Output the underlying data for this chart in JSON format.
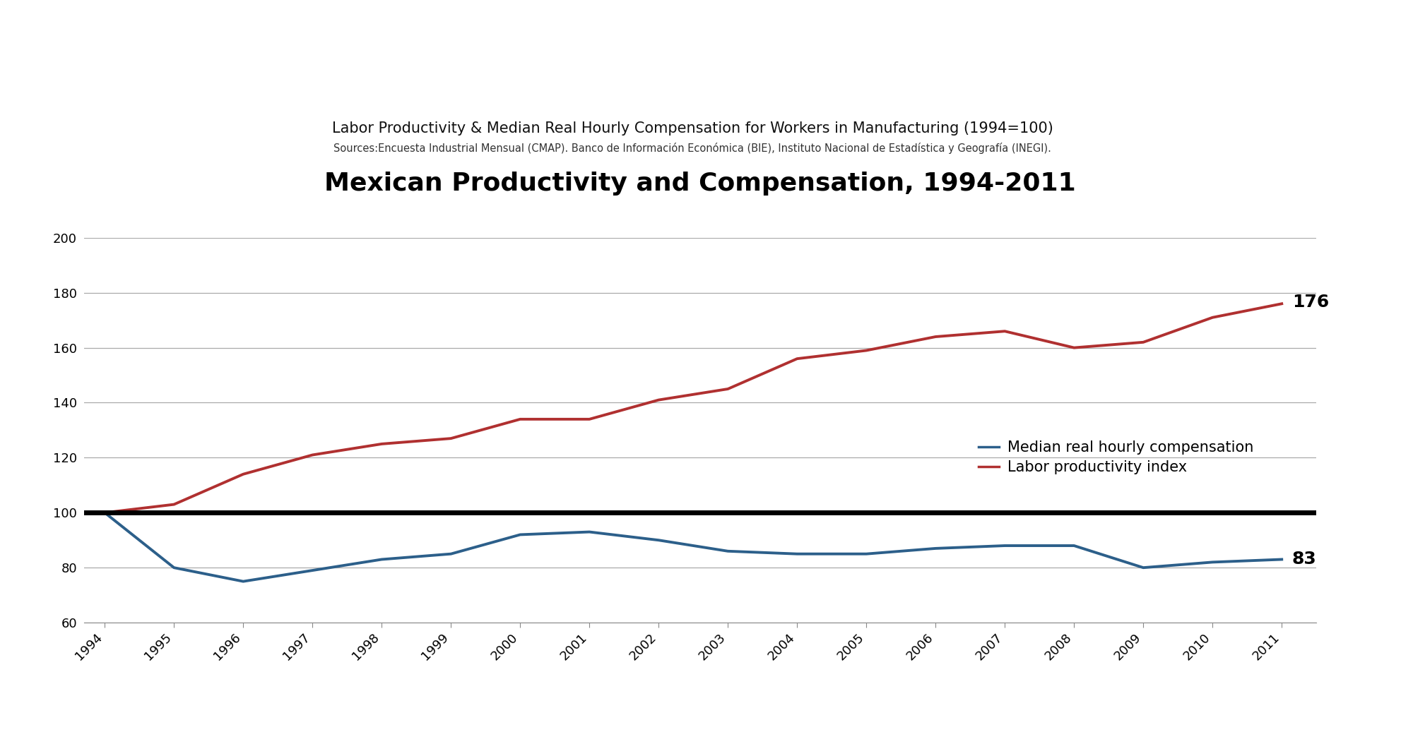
{
  "title": "Mexican Productivity and Compensation, 1994-2011",
  "subtitle": "Labor Productivity & Median Real Hourly Compensation for Workers in Manufacturing (1994=100)",
  "sources": "Sources:Encuesta Industrial Mensual (CMAP). Banco de Información Económica (BIE), Instituto Nacional de Estadística y Geografía (INEGI).",
  "years": [
    1994,
    1995,
    1996,
    1997,
    1998,
    1999,
    2000,
    2001,
    2002,
    2003,
    2004,
    2005,
    2006,
    2007,
    2008,
    2009,
    2010,
    2011
  ],
  "labor_productivity": [
    100,
    103,
    114,
    121,
    125,
    127,
    134,
    134,
    141,
    145,
    156,
    159,
    164,
    166,
    160,
    162,
    171,
    176
  ],
  "median_compensation": [
    100,
    80,
    75,
    79,
    83,
    85,
    92,
    93,
    90,
    86,
    85,
    85,
    87,
    88,
    88,
    80,
    82,
    83
  ],
  "productivity_color": "#b03030",
  "compensation_color": "#2c5f8a",
  "reference_line_value": 100,
  "ylim_min": 60,
  "ylim_max": 200,
  "yticks": [
    60,
    80,
    100,
    120,
    140,
    160,
    180,
    200
  ],
  "productivity_label": "Labor productivity index",
  "compensation_label": "Median real hourly compensation",
  "productivity_end_label": "176",
  "compensation_end_label": "83",
  "background_color": "#ffffff",
  "grid_color": "#aaaaaa",
  "title_fontsize": 26,
  "subtitle_fontsize": 15,
  "sources_fontsize": 10.5,
  "tick_labelsize": 13,
  "legend_fontsize": 15
}
